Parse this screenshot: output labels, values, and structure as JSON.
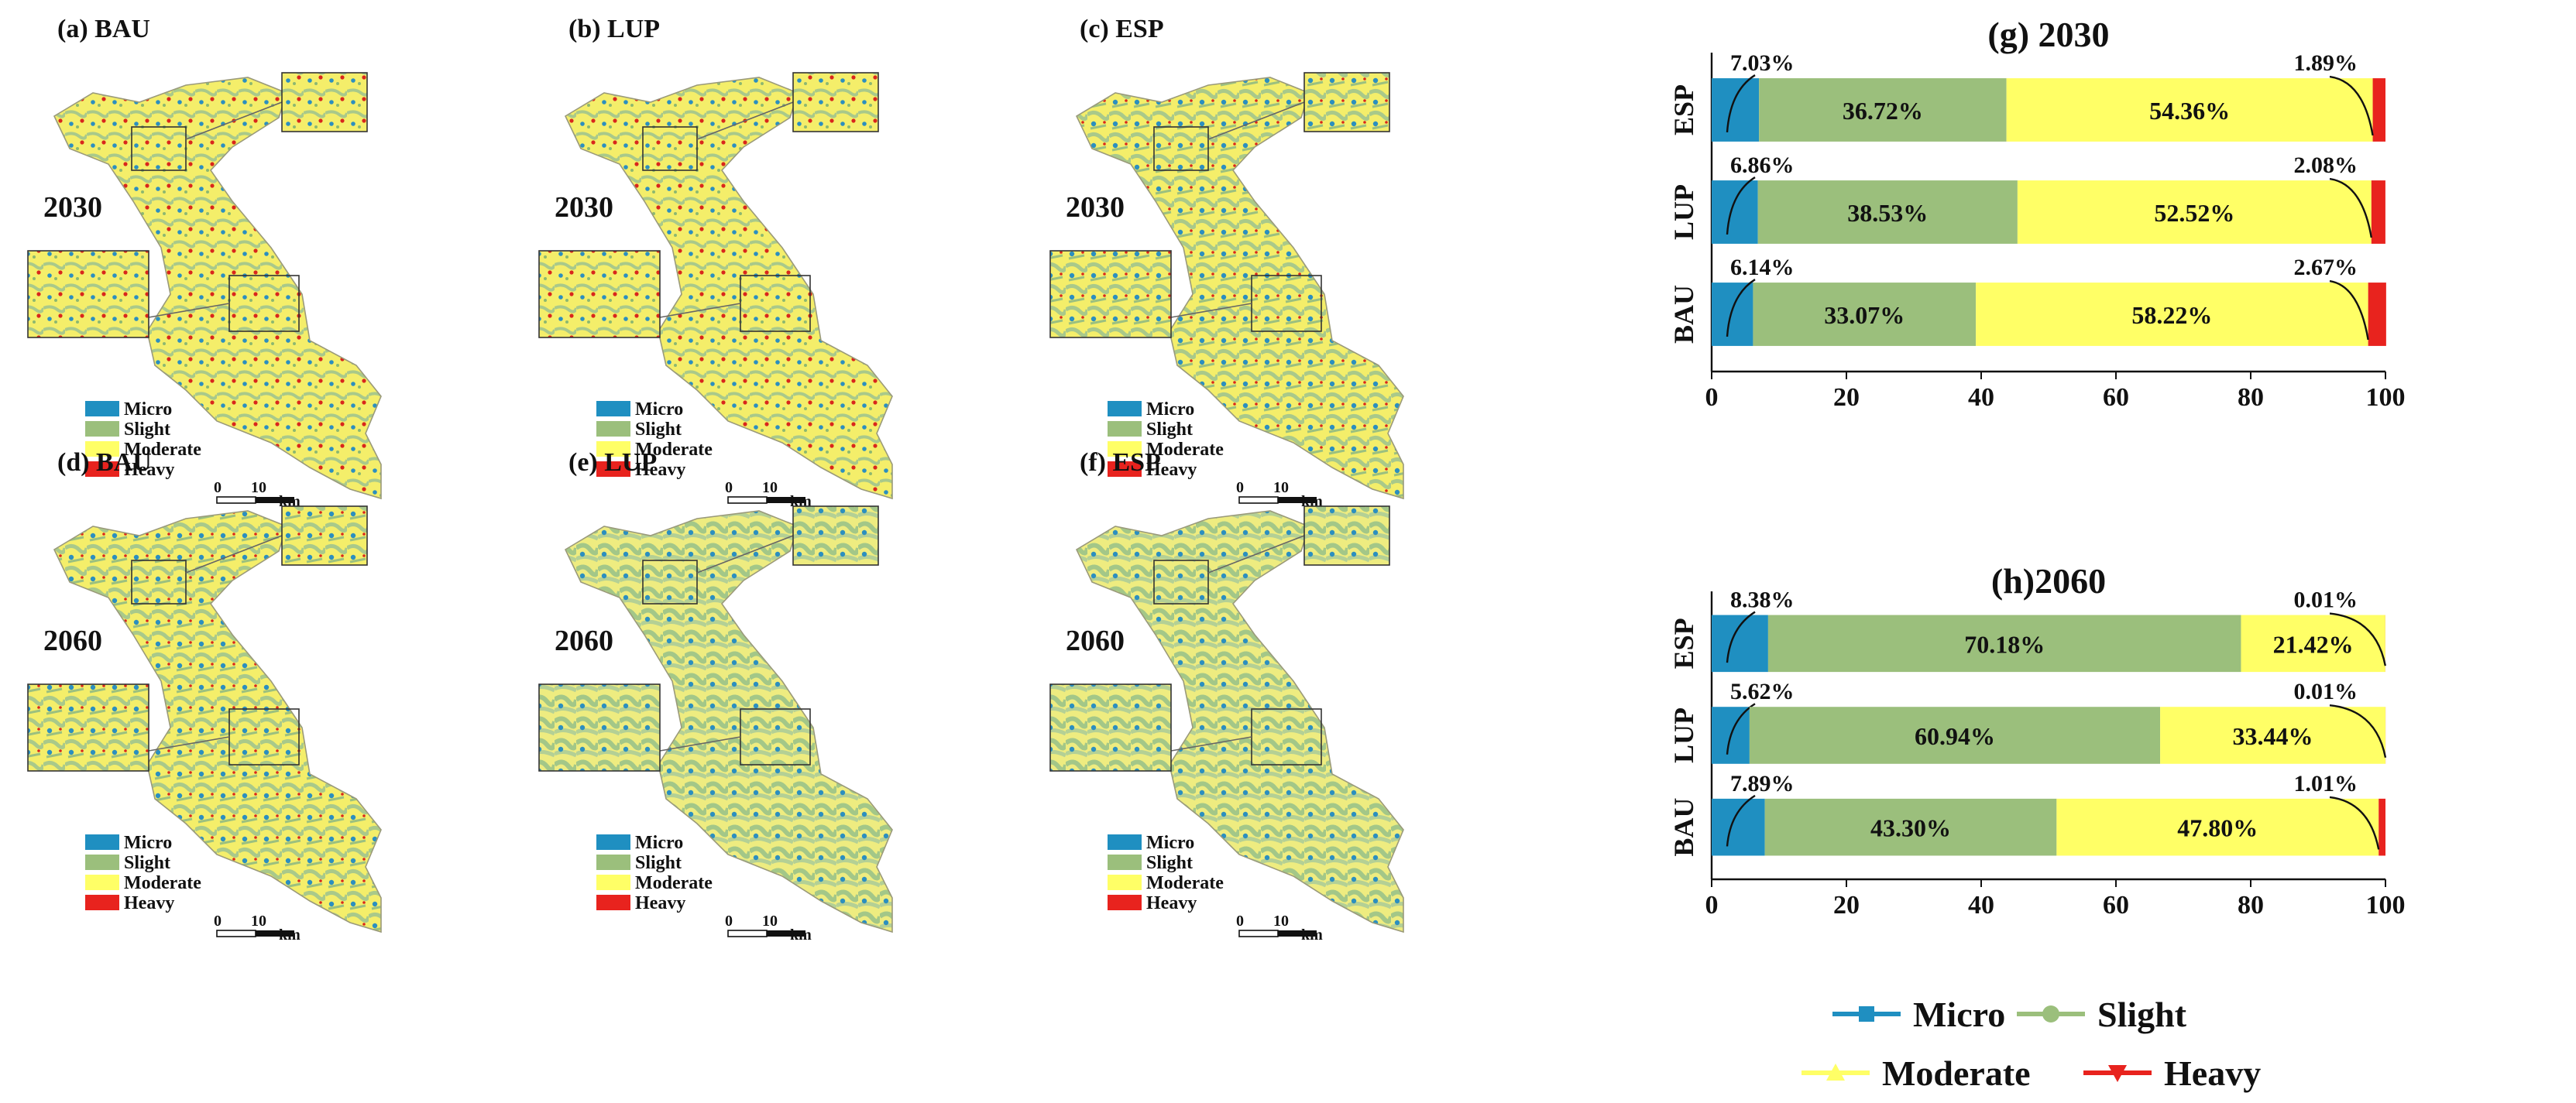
{
  "maps": {
    "panels": [
      {
        "label": "(a) BAU",
        "year": "2030"
      },
      {
        "label": "(b) LUP",
        "year": "2030"
      },
      {
        "label": "(c) ESP",
        "year": "2030"
      },
      {
        "label": "(d) BAU",
        "year": "2060"
      },
      {
        "label": "(e) LUP",
        "year": "2060"
      },
      {
        "label": "(f) ESP",
        "year": "2060"
      }
    ],
    "legend": [
      "Micro",
      "Slight",
      "Moderate",
      "Heavy"
    ],
    "colors": [
      "#1f8fc1",
      "#9bbf7c",
      "#ffff66",
      "#e8231e"
    ],
    "scale": [
      "0",
      "10",
      "km"
    ]
  },
  "chart_data": [
    {
      "type": "stacked_bar",
      "title": "(g) 2030",
      "categories": [
        "ESP",
        "LUP",
        "BAU"
      ],
      "xlim": [
        0,
        100
      ],
      "xticks": [
        0,
        20,
        40,
        60,
        80,
        100
      ],
      "series": [
        {
          "name": "Micro",
          "color": "#1f8fc1",
          "values": [
            7.03,
            6.86,
            6.14
          ],
          "value_labels": [
            "7.03%",
            "6.86%",
            "6.14%"
          ]
        },
        {
          "name": "Slight",
          "color": "#9bbf7c",
          "values": [
            36.72,
            38.53,
            33.07
          ],
          "value_labels": [
            "36.72%",
            "38.53%",
            "33.07%"
          ]
        },
        {
          "name": "Moderate",
          "color": "#ffff66",
          "values": [
            54.36,
            52.52,
            58.22
          ],
          "value_labels": [
            "54.36%",
            "52.52%",
            "58.22%"
          ]
        },
        {
          "name": "Heavy",
          "color": "#e8231e",
          "values": [
            1.89,
            2.08,
            2.67
          ],
          "value_labels": [
            "1.89%",
            "2.08%",
            "2.67%"
          ]
        }
      ]
    },
    {
      "type": "stacked_bar",
      "title": "(h)2060",
      "categories": [
        "ESP",
        "LUP",
        "BAU"
      ],
      "xlim": [
        0,
        100
      ],
      "xticks": [
        0,
        20,
        40,
        60,
        80,
        100
      ],
      "series": [
        {
          "name": "Micro",
          "color": "#1f8fc1",
          "values": [
            8.38,
            5.62,
            7.89
          ],
          "value_labels": [
            "8.38%",
            "5.62%",
            "7.89%"
          ]
        },
        {
          "name": "Slight",
          "color": "#9bbf7c",
          "values": [
            70.18,
            60.94,
            43.3
          ],
          "value_labels": [
            "70.18%",
            "60.94%",
            "43.30%"
          ]
        },
        {
          "name": "Moderate",
          "color": "#ffff66",
          "values": [
            21.42,
            33.44,
            47.8
          ],
          "value_labels": [
            "21.42%",
            "33.44%",
            "47.80%"
          ]
        },
        {
          "name": "Heavy",
          "color": "#e8231e",
          "values": [
            0.01,
            0.01,
            1.01
          ],
          "value_labels": [
            "0.01%",
            "0.01%",
            "1.01%"
          ]
        }
      ]
    }
  ]
}
